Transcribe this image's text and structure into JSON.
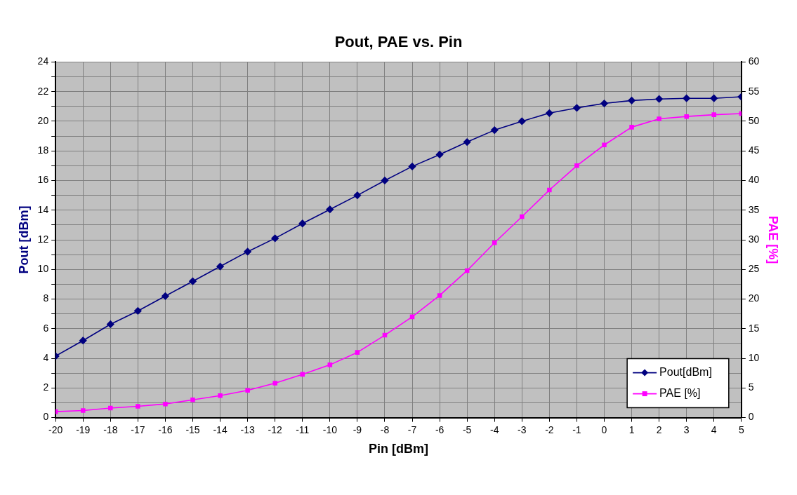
{
  "chart_data": {
    "type": "line",
    "title": "Pout, PAE vs. Pin",
    "xlabel": "Pin [dBm]",
    "ylabel": "Pout [dBm]",
    "y2label": "PAE [%]",
    "x": [
      -20,
      -19,
      -18,
      -17,
      -16,
      -15,
      -14,
      -13,
      -12,
      -11,
      -10,
      -9,
      -8,
      -7,
      -6,
      -5,
      -4,
      -3,
      -2,
      -1,
      0,
      1,
      2,
      3,
      4,
      5
    ],
    "series": [
      {
        "name": "Pout[dBm]",
        "color": "#000080",
        "marker": "diamond",
        "values": [
          4.15,
          5.2,
          6.3,
          7.2,
          8.2,
          9.2,
          10.2,
          11.2,
          12.1,
          13.1,
          14.05,
          15.0,
          16.0,
          16.95,
          17.75,
          18.6,
          19.4,
          20.0,
          20.55,
          20.9,
          21.2,
          21.4,
          21.5,
          21.55,
          21.55,
          21.65
        ]
      },
      {
        "name": "PAE [%]",
        "color": "#ff00ff",
        "marker": "square",
        "axis": "y2",
        "values": [
          1.0,
          1.2,
          1.6,
          1.9,
          2.3,
          3.0,
          3.7,
          4.6,
          5.8,
          7.3,
          8.9,
          11.0,
          13.9,
          17.0,
          20.6,
          24.8,
          29.5,
          33.9,
          38.4,
          42.5,
          46.0,
          49.0,
          50.4,
          50.8,
          51.1,
          51.3
        ]
      }
    ],
    "xlim": [
      -20,
      5
    ],
    "xticks": [
      -20,
      -19,
      -18,
      -17,
      -16,
      -15,
      -14,
      -13,
      -12,
      -11,
      -10,
      -9,
      -8,
      -7,
      -6,
      -5,
      -4,
      -3,
      -2,
      -1,
      0,
      1,
      2,
      3,
      4,
      5
    ],
    "ylim": [
      0,
      24
    ],
    "yticks": [
      0,
      {
        "value": 1,
        "label": null
      },
      2,
      {
        "value": 3,
        "label": null
      },
      4,
      {
        "value": 5,
        "label": null
      },
      6,
      {
        "value": 7,
        "label": null
      },
      8,
      {
        "value": 9,
        "label": null
      },
      10,
      {
        "value": 11,
        "label": null
      },
      12,
      {
        "value": 13,
        "label": null
      },
      14,
      {
        "value": 15,
        "label": null
      },
      16,
      {
        "value": 17,
        "label": null
      },
      18,
      {
        "value": 19,
        "label": null
      },
      20,
      {
        "value": 21,
        "label": null
      },
      22,
      {
        "value": 23,
        "label": null
      },
      24
    ],
    "y2lim": [
      0,
      60
    ],
    "y2ticks": [
      0,
      5,
      10,
      15,
      20,
      25,
      30,
      35,
      40,
      45,
      50,
      55,
      60
    ],
    "grid": true,
    "legend": "bottom right"
  }
}
